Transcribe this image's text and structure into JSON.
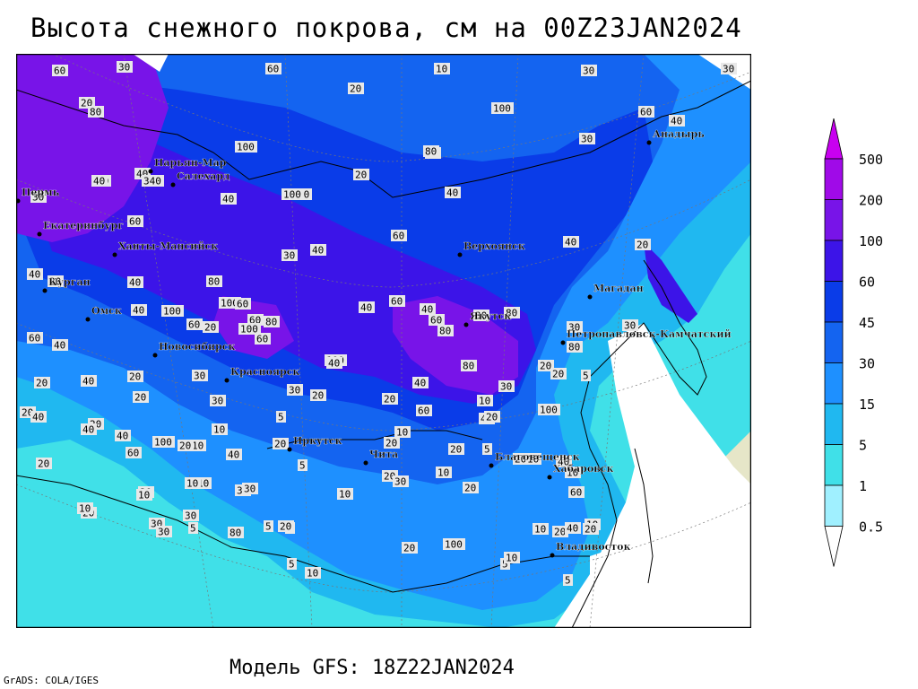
{
  "title": "Высота снежного покрова, см на 00Z23JAN2024",
  "subtitle": "Модель GFS: 18Z22JAN2024",
  "credit": "GrADS: COLA/IGES",
  "legend": {
    "levels": [
      "0.5",
      "1",
      "5",
      "15",
      "30",
      "45",
      "60",
      "100",
      "200",
      "500"
    ],
    "colors": [
      "#ffffff",
      "#a0f0ff",
      "#40e0e8",
      "#20b8f0",
      "#1e90ff",
      "#1464f0",
      "#0a3ce8",
      "#3c14e8",
      "#7814e8",
      "#a00ae8",
      "#c800f0"
    ]
  },
  "colors": {
    "land_bare": "#e6e6c8",
    "coastline": "#000000",
    "frame": "#000000"
  },
  "cities": [
    {
      "name": "Анадырь"
    },
    {
      "name": "Нарьян-Мар"
    },
    {
      "name": "Салехард"
    },
    {
      "name": "Пермь"
    },
    {
      "name": "Екатеринбург"
    },
    {
      "name": "Ханты-Мансийск"
    },
    {
      "name": "Курган"
    },
    {
      "name": "Омск"
    },
    {
      "name": "Новосибирск"
    },
    {
      "name": "Красноярск"
    },
    {
      "name": "Верхоянск"
    },
    {
      "name": "Магадан"
    },
    {
      "name": "Якутск"
    },
    {
      "name": "Петропавловск-Камчатский"
    },
    {
      "name": "Иркутск"
    },
    {
      "name": "Чита"
    },
    {
      "name": "Благовещенск"
    },
    {
      "name": "Хабаровск"
    },
    {
      "name": "Владивосток"
    }
  ],
  "contour_labels": [
    "60",
    "30",
    "60",
    "10",
    "30",
    "30",
    "20",
    "20",
    "80",
    "100",
    "40",
    "80",
    "100",
    "30",
    "60",
    "40",
    "20",
    "20",
    "340",
    "40",
    "30",
    "40",
    "100",
    "80",
    "40",
    "40",
    "20",
    "30",
    "40",
    "60",
    "60",
    "40",
    "40",
    "20",
    "40",
    "80",
    "100",
    "40",
    "100",
    "60",
    "60",
    "40",
    "60",
    "40",
    "60",
    "80",
    "80",
    "30",
    "30",
    "60",
    "40",
    "60",
    "20",
    "60",
    "100",
    "80",
    "100",
    "80",
    "40",
    "10",
    "30",
    "20",
    "20",
    "40",
    "40",
    "100",
    "20",
    "30",
    "30",
    "40",
    "20",
    "5",
    "60",
    "40",
    "20",
    "80",
    "30",
    "20",
    "40",
    "20",
    "10",
    "20",
    "30",
    "10",
    "20",
    "20",
    "40",
    "40",
    "60",
    "10",
    "20",
    "20",
    "100",
    "5",
    "20",
    "20",
    "20",
    "10",
    "30",
    "5",
    "20",
    "20",
    "5",
    "20",
    "40",
    "60",
    "10",
    "20",
    "10",
    "10",
    "30",
    "5",
    "5",
    "10",
    "30",
    "10",
    "20",
    "10",
    "10",
    "5",
    "20",
    "40",
    "20",
    "30",
    "30",
    "80",
    "5",
    "10",
    "20",
    "100",
    "5",
    "10",
    "10",
    "10",
    "30",
    "5",
    "20"
  ]
}
